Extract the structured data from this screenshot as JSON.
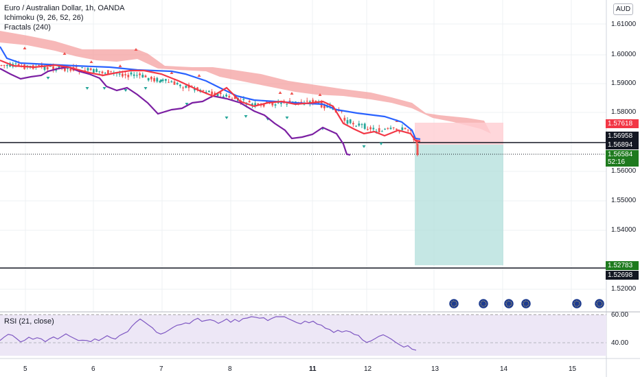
{
  "header": {
    "symbol_title": "Euro / Australian Dollar, 1h, OANDA",
    "indicator_ichimoku": "Ichimoku (9, 26, 52, 26)",
    "indicator_fractals": "Fractals (240)"
  },
  "price_axis": {
    "currency_badge": "AUD",
    "ticks": [
      "1.61000",
      "1.60000",
      "1.59000",
      "1.58000",
      "1.56000",
      "1.55000",
      "1.54000",
      "1.52000"
    ],
    "tag_red": "1.57618",
    "tag_black_1": "1.56958",
    "tag_black_2": "1.56894",
    "tag_green": "1.56584",
    "tag_green_timer": "52:16",
    "tag_tp": "1.52783",
    "tag_black_3": "1.52698",
    "colors": {
      "red": "#f23645",
      "green": "#1e7a1e",
      "black": "#131722"
    }
  },
  "rsi": {
    "label": "RSI (21, close)",
    "ticks": [
      "60.00",
      "40.00"
    ]
  },
  "time_axis": {
    "labels": [
      "5",
      "6",
      "7",
      "8",
      "11",
      "12",
      "13",
      "14",
      "15"
    ]
  },
  "colors": {
    "candle_up": "#26a69a",
    "candle_down": "#ef5350",
    "kijun": "#2962ff",
    "tenkan": "#f23645",
    "chikou": "#7b1fa2",
    "cloud": "#f4a0a0",
    "position_tp": "#b2dfdb",
    "position_sl": "#ffcdd2",
    "rsi_line": "#7e57c2",
    "rsi_bg": "#ede7f6"
  }
}
